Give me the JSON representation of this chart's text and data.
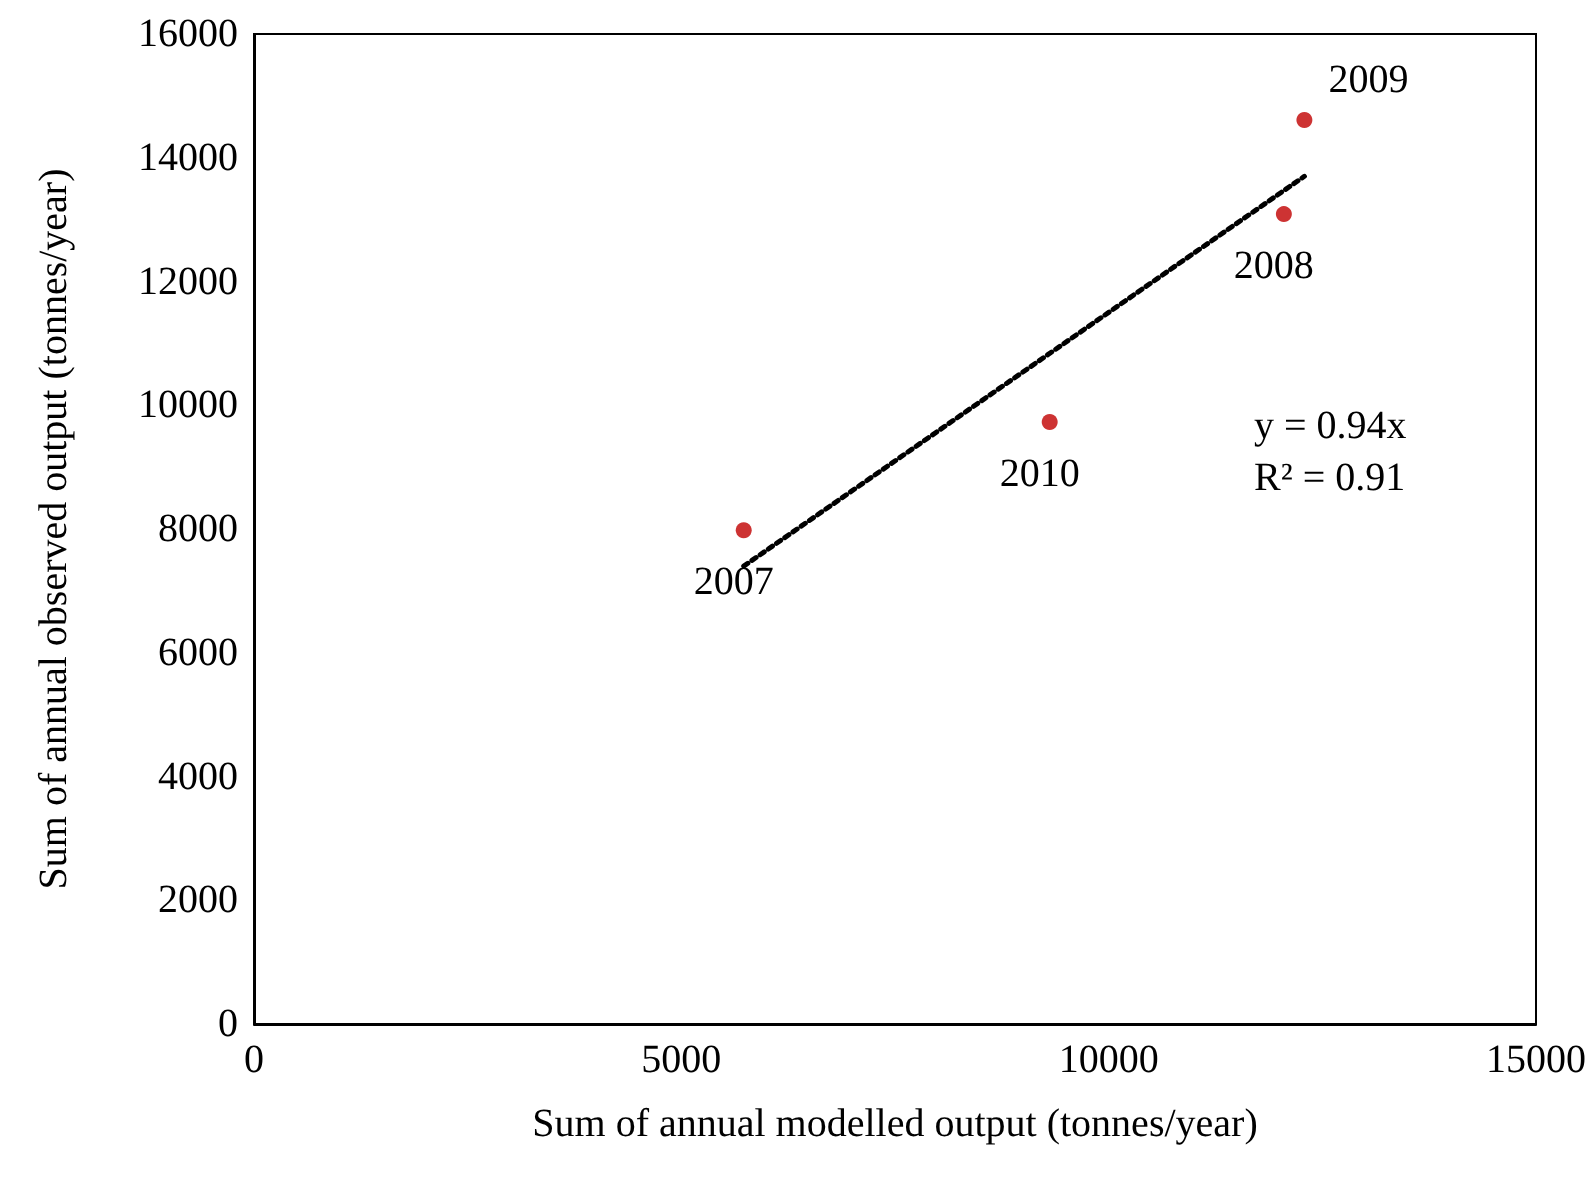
{
  "chart_data": {
    "type": "scatter",
    "xlabel": "Sum of annual modelled output (tonnes/year)",
    "ylabel": "Sum of annual observed output (tonnes/year)",
    "x": [
      5730,
      12050,
      12290,
      9310
    ],
    "series": [
      {
        "color": "#c00000",
        "marker": "circle",
        "values": [
          7980,
          13090,
          14610,
          9730
        ]
      },
      {
        "type": "line",
        "color": "#000000",
        "line_style": "dotted",
        "marker": "none",
        "x": [
          5730,
          12290
        ],
        "values": [
          7400,
          13700
        ]
      }
    ],
    "xlim": [
      0,
      15000
    ],
    "xticks": [
      0,
      5000,
      10000,
      15000
    ],
    "ylim": [
      0,
      16000
    ],
    "yticks": [
      0,
      2000,
      4000,
      6000,
      8000,
      10000,
      12000,
      14000,
      16000
    ],
    "annotations": [
      {
        "text": "2007",
        "x": 5730,
        "y": 7980
      },
      {
        "text": "2008",
        "x": 12050,
        "y": 13090
      },
      {
        "text": "2009",
        "x": 12290,
        "y": 14610
      },
      {
        "text": "2010",
        "x": 9310,
        "y": 9730
      },
      "y = 0.94x\nR² = 0.91"
    ]
  }
}
